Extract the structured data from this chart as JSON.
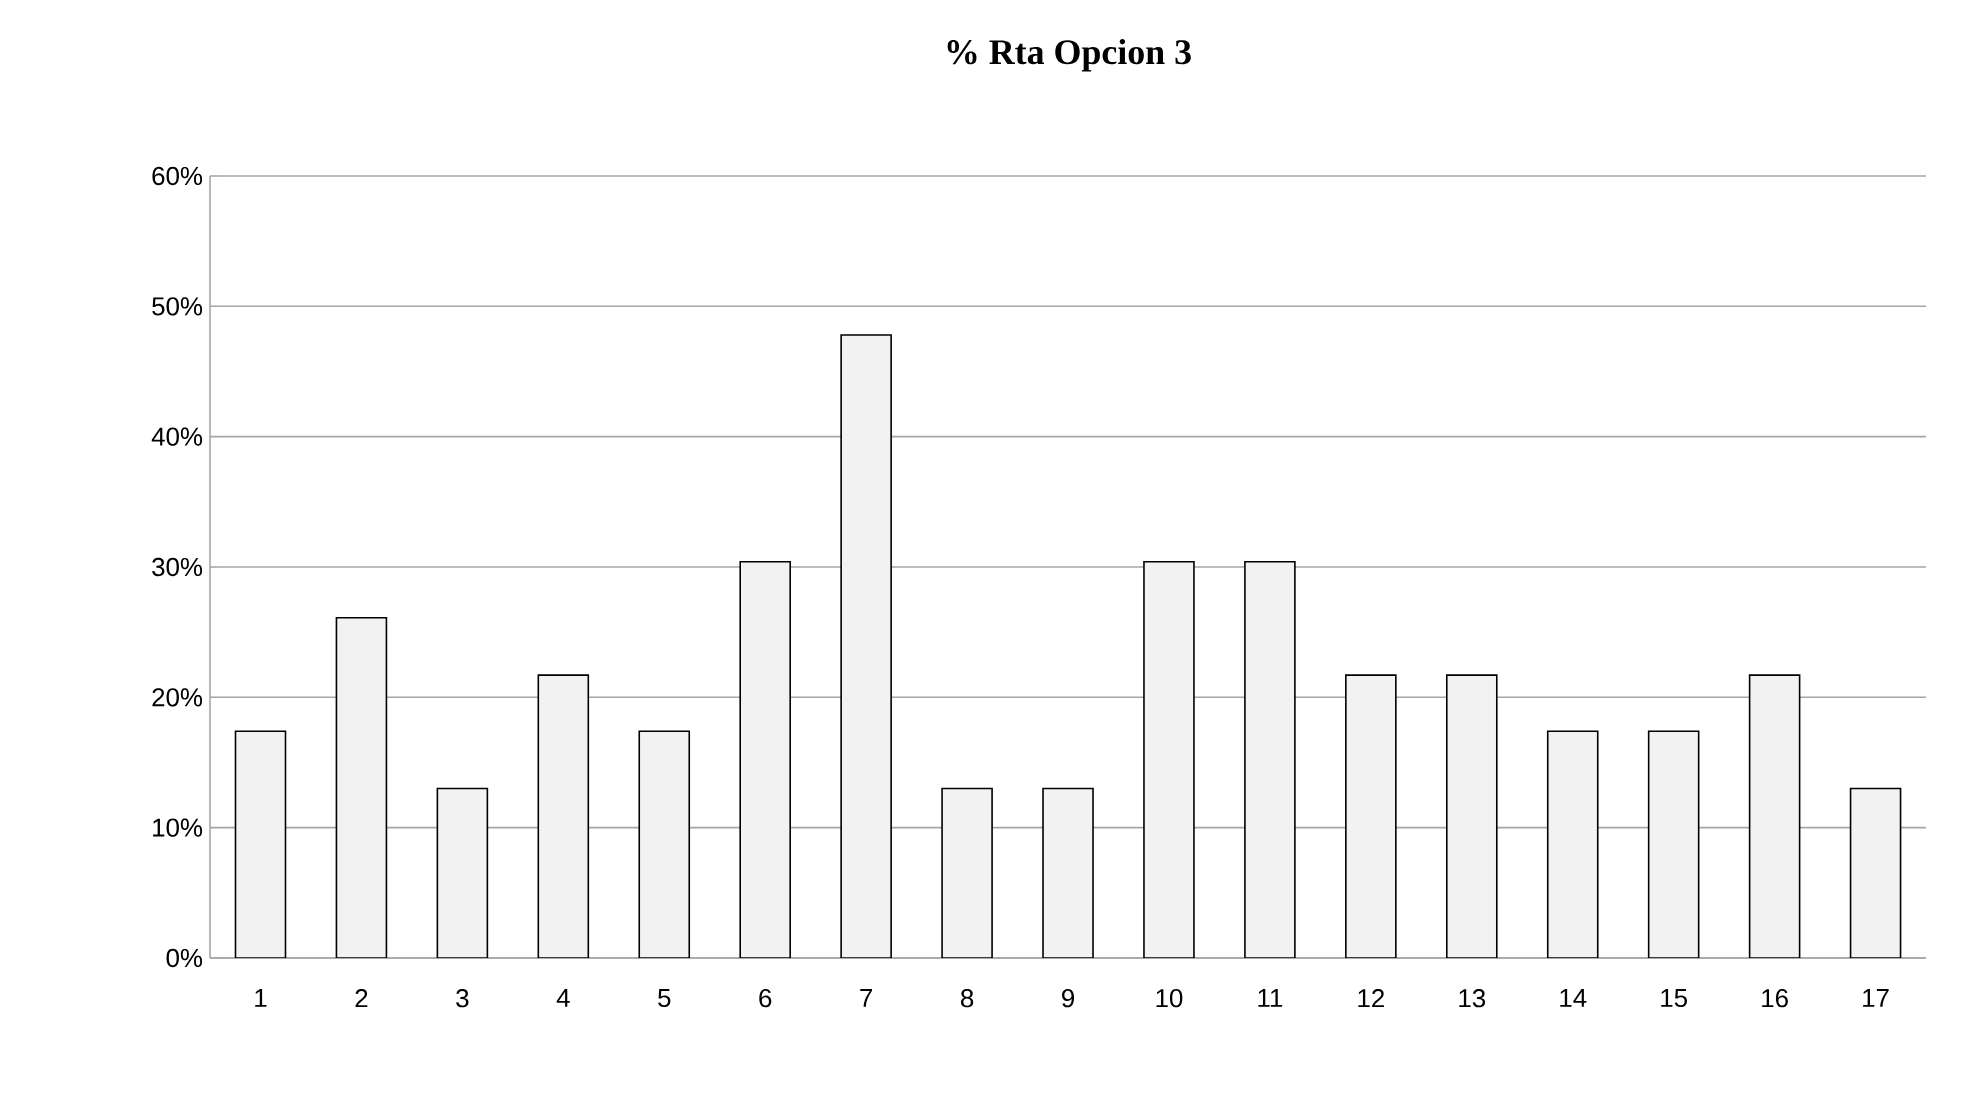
{
  "chart_data": {
    "type": "bar",
    "title": "**% Rta Opcion 3**",
    "categories": [
      "1",
      "2",
      "3",
      "4",
      "5",
      "6",
      "7",
      "8",
      "9",
      "10",
      "11",
      "12",
      "13",
      "14",
      "15",
      "16",
      "17"
    ],
    "values": [
      17.4,
      26.1,
      13.0,
      21.7,
      17.4,
      30.4,
      47.8,
      13.0,
      13.0,
      30.4,
      30.4,
      21.7,
      21.7,
      17.4,
      17.4,
      21.7,
      13.0
    ],
    "color": "#f2f2f2",
    "ylim": [
      0,
      60
    ],
    "yticks": [
      {
        "value": 0,
        "label": "0%"
      },
      {
        "value": 10,
        "label": "10%"
      },
      {
        "value": 20,
        "label": "20%"
      },
      {
        "value": 30,
        "label": "30%"
      },
      {
        "value": 40,
        "label": "40%"
      },
      {
        "value": 50,
        "label": "50%"
      },
      {
        "value": 60,
        "label": "60%"
      }
    ],
    "grid": "y"
  }
}
